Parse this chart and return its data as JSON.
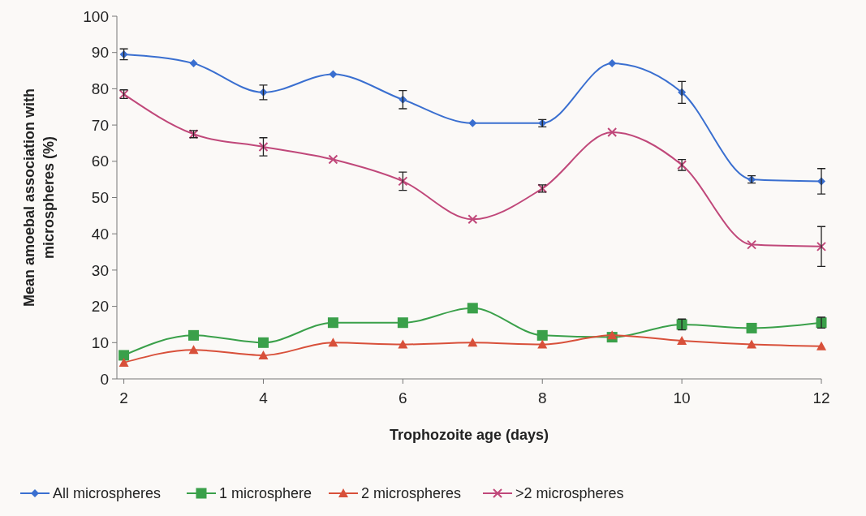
{
  "chart_data": {
    "type": "line",
    "xlabel": "Trophozoite age (days)",
    "ylabel": "Mean amoebal association with microspheres (%)",
    "x": [
      2,
      3,
      4,
      5,
      6,
      7,
      8,
      9,
      10,
      11,
      12
    ],
    "xlim": [
      1.9,
      12
    ],
    "xticks": [
      2,
      4,
      6,
      8,
      10,
      12
    ],
    "ylim": [
      0,
      100
    ],
    "yticks": [
      0,
      10,
      20,
      30,
      40,
      50,
      60,
      70,
      80,
      90,
      100
    ],
    "grid": false,
    "legend": "bottom",
    "series": [
      {
        "name": "All microspheres",
        "color": "#3a6fd0",
        "marker": "diamond",
        "values": [
          89.5,
          87,
          79,
          84,
          77,
          70.5,
          70.5,
          87,
          79,
          55,
          54.5
        ],
        "errors": [
          1.5,
          null,
          2,
          null,
          2.5,
          null,
          1,
          null,
          3,
          1,
          3.5
        ]
      },
      {
        "name": "1 microsphere",
        "color": "#3aa04a",
        "marker": "square",
        "values": [
          6.5,
          12,
          10,
          15.5,
          15.5,
          19.5,
          12,
          11.5,
          15,
          14,
          15.5
        ],
        "errors": [
          null,
          null,
          null,
          null,
          null,
          null,
          null,
          null,
          1.5,
          null,
          1.5
        ]
      },
      {
        "name": "2 microspheres",
        "color": "#d8503a",
        "marker": "triangle",
        "values": [
          4.5,
          8,
          6.5,
          10,
          9.5,
          10,
          9.5,
          12,
          10.5,
          9.5,
          9
        ]
      },
      {
        "name": ">2 microspheres",
        "color": "#c0487a",
        "marker": "cross",
        "values": [
          78.5,
          67.5,
          64,
          60.5,
          54.5,
          44,
          52.5,
          68,
          59,
          37,
          36.5
        ],
        "errors": [
          1.2,
          1,
          2.5,
          null,
          2.5,
          null,
          1,
          null,
          1.5,
          null,
          5.5
        ]
      }
    ]
  }
}
